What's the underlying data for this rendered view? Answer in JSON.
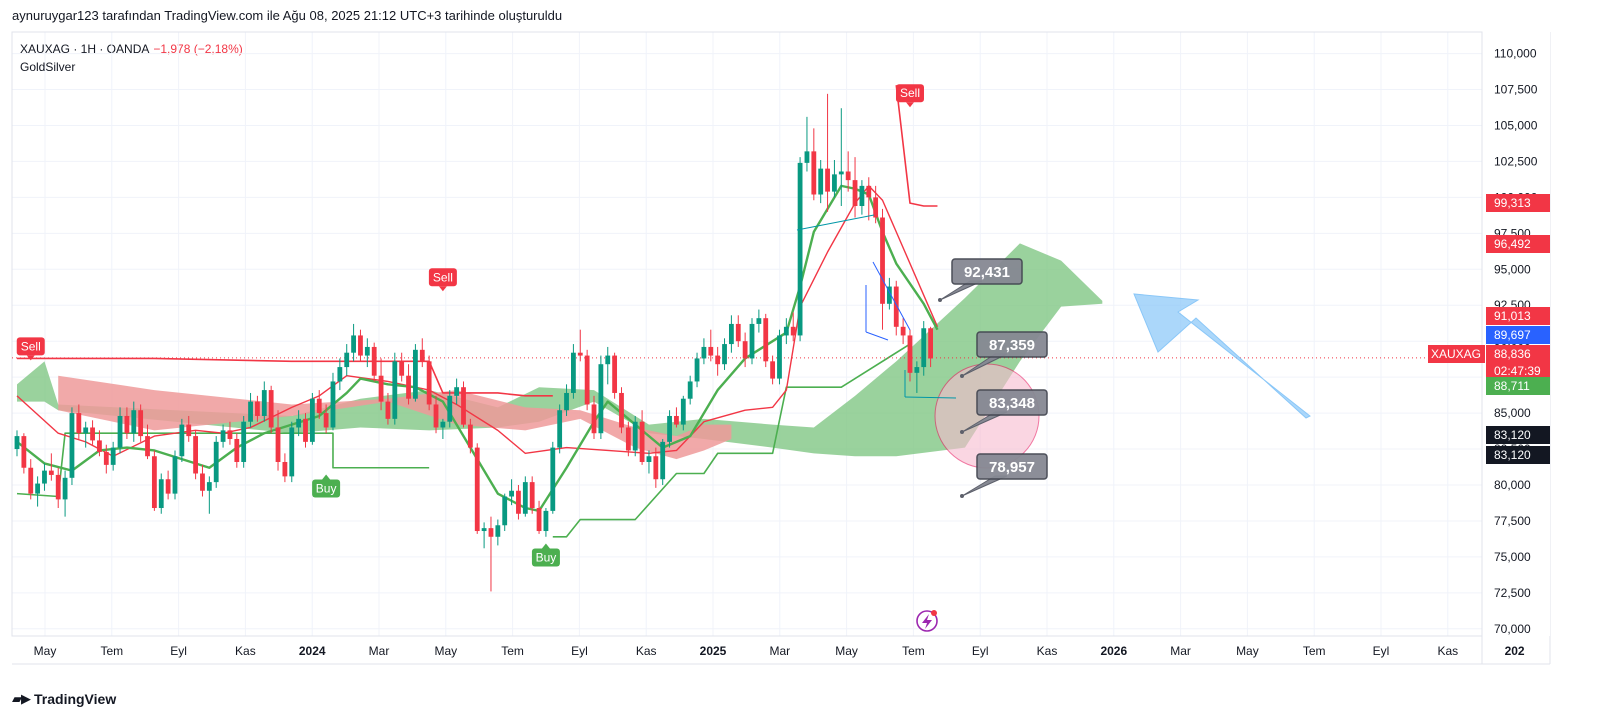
{
  "header": {
    "attribution": "aynuruygar123 tarafından TradingView.com ile Ağu 08, 2025 21:12 UTC+3 tarihinde oluşturuldu",
    "symbol_line": "XAUXAG · 1H · OANDA",
    "change": "−1,978 (−2,18%)",
    "indicator": "GoldSilver"
  },
  "footer": {
    "brand": "TradingView",
    "logo_icon": "tradingview-logo-icon"
  },
  "colors": {
    "up": "#089981",
    "down": "#f23645",
    "buy": "#4caf50",
    "sell": "#f23645",
    "cloud_green": "#81c784",
    "cloud_red": "#ef9a9a",
    "annotation": "#868993",
    "arrow": "#90caf9",
    "circle": "#f8bbd0"
  },
  "chart_data": {
    "type": "candlestick",
    "symbol": "XAUXAG",
    "interval": "1H",
    "source": "OANDA",
    "ylim": [
      69500,
      111500
    ],
    "y_ticks": [
      "110,000",
      "107,500",
      "105,000",
      "102,500",
      "100,000",
      "97,500",
      "95,000",
      "92,500",
      "90,000",
      "87,500",
      "85,000",
      "82,500",
      "80,000",
      "77,500",
      "75,000",
      "72,500",
      "70,000"
    ],
    "x_ticks": [
      "May",
      "Tem",
      "Eyl",
      "Kas",
      "2024",
      "Mar",
      "May",
      "Tem",
      "Eyl",
      "Kas",
      "2025",
      "Mar",
      "May",
      "Tem",
      "Eyl",
      "Kas",
      "2026",
      "Mar",
      "May",
      "Tem",
      "Eyl",
      "Kas",
      "202"
    ],
    "x_tick_bold": [
      "2024",
      "2025",
      "2026",
      "202"
    ],
    "candles": [
      [
        82.5,
        83.8,
        82.0,
        83.4
      ],
      [
        83.4,
        83.6,
        80.8,
        81.2
      ],
      [
        81.2,
        81.8,
        79.0,
        79.4
      ],
      [
        79.4,
        80.6,
        78.5,
        80.1
      ],
      [
        80.1,
        81.5,
        79.6,
        81.0
      ],
      [
        81.0,
        82.2,
        80.3,
        80.7
      ],
      [
        80.7,
        81.2,
        78.4,
        79.0
      ],
      [
        79.0,
        81.0,
        77.8,
        80.5
      ],
      [
        80.5,
        85.4,
        80.0,
        85.0
      ],
      [
        85.0,
        85.6,
        83.2,
        83.6
      ],
      [
        83.6,
        84.4,
        82.6,
        84.0
      ],
      [
        84.0,
        84.5,
        82.8,
        83.1
      ],
      [
        83.1,
        83.8,
        82.0,
        82.3
      ],
      [
        82.3,
        82.8,
        80.8,
        81.4
      ],
      [
        81.4,
        83.0,
        81.0,
        82.6
      ],
      [
        82.6,
        85.4,
        82.2,
        84.8
      ],
      [
        84.8,
        85.4,
        83.2,
        83.6
      ],
      [
        83.6,
        85.8,
        83.0,
        85.2
      ],
      [
        85.2,
        85.6,
        83.0,
        83.4
      ],
      [
        83.4,
        84.2,
        81.8,
        82.0
      ],
      [
        82.0,
        82.4,
        78.2,
        78.4
      ],
      [
        78.4,
        80.8,
        78.0,
        80.4
      ],
      [
        80.4,
        81.0,
        79.0,
        79.4
      ],
      [
        79.4,
        82.4,
        79.0,
        82.0
      ],
      [
        82.0,
        84.6,
        81.6,
        84.2
      ],
      [
        84.2,
        84.8,
        83.0,
        83.4
      ],
      [
        83.4,
        83.8,
        80.4,
        80.8
      ],
      [
        80.8,
        81.4,
        79.2,
        79.6
      ],
      [
        79.6,
        80.6,
        78.0,
        80.2
      ],
      [
        80.2,
        83.4,
        79.8,
        83.0
      ],
      [
        83.0,
        84.2,
        82.6,
        83.8
      ],
      [
        83.8,
        84.4,
        82.8,
        83.2
      ],
      [
        83.2,
        83.6,
        81.2,
        81.6
      ],
      [
        81.6,
        84.8,
        81.2,
        84.4
      ],
      [
        84.4,
        86.4,
        84.0,
        85.8
      ],
      [
        85.8,
        86.2,
        84.4,
        84.8
      ],
      [
        84.8,
        87.2,
        84.4,
        86.6
      ],
      [
        86.6,
        86.9,
        83.6,
        84.0
      ],
      [
        84.0,
        85.2,
        81.0,
        81.6
      ],
      [
        81.6,
        82.2,
        80.2,
        80.6
      ],
      [
        80.6,
        84.4,
        80.2,
        84.0
      ],
      [
        84.0,
        85.2,
        83.4,
        84.6
      ],
      [
        84.6,
        85.0,
        82.6,
        83.0
      ],
      [
        83.0,
        86.4,
        82.8,
        86.0
      ],
      [
        86.0,
        86.6,
        84.6,
        85.0
      ],
      [
        85.0,
        85.6,
        83.6,
        84.0
      ],
      [
        84.0,
        87.8,
        83.8,
        87.2
      ],
      [
        87.2,
        88.8,
        86.6,
        88.2
      ],
      [
        88.2,
        89.8,
        87.6,
        89.2
      ],
      [
        89.2,
        91.2,
        88.6,
        90.4
      ],
      [
        90.4,
        90.8,
        88.6,
        89.0
      ],
      [
        89.0,
        90.2,
        88.2,
        89.6
      ],
      [
        89.6,
        89.9,
        87.2,
        87.6
      ],
      [
        87.6,
        88.8,
        85.2,
        85.8
      ],
      [
        85.8,
        86.4,
        84.2,
        84.6
      ],
      [
        84.6,
        89.2,
        84.2,
        88.6
      ],
      [
        88.6,
        89.2,
        87.2,
        87.6
      ],
      [
        87.6,
        88.4,
        85.6,
        86.0
      ],
      [
        86.0,
        89.8,
        85.8,
        89.4
      ],
      [
        89.4,
        90.2,
        88.2,
        88.6
      ],
      [
        88.6,
        89.0,
        85.2,
        85.6
      ],
      [
        85.6,
        86.2,
        83.6,
        84.0
      ],
      [
        84.0,
        84.6,
        83.2,
        84.4
      ],
      [
        84.4,
        86.6,
        84.0,
        86.2
      ],
      [
        86.2,
        87.4,
        85.6,
        86.8
      ],
      [
        86.8,
        87.2,
        84.0,
        84.2
      ],
      [
        84.2,
        84.6,
        82.2,
        82.6
      ],
      [
        82.6,
        82.9,
        76.6,
        76.8
      ],
      [
        76.8,
        77.4,
        75.6,
        77.0
      ],
      [
        77.0,
        77.8,
        72.6,
        76.4
      ],
      [
        76.4,
        77.6,
        75.8,
        77.2
      ],
      [
        77.2,
        79.4,
        76.8,
        79.2
      ],
      [
        79.2,
        80.4,
        78.6,
        79.6
      ],
      [
        79.6,
        80.0,
        77.6,
        78.0
      ],
      [
        78.0,
        80.6,
        77.8,
        80.2
      ],
      [
        80.2,
        80.6,
        78.0,
        78.4
      ],
      [
        78.4,
        78.9,
        76.6,
        76.8
      ],
      [
        76.8,
        78.4,
        76.4,
        78.2
      ],
      [
        78.2,
        83.0,
        78.0,
        82.6
      ],
      [
        82.6,
        85.6,
        82.2,
        85.2
      ],
      [
        85.2,
        87.0,
        84.8,
        86.4
      ],
      [
        86.4,
        89.8,
        86.0,
        89.2
      ],
      [
        89.2,
        90.8,
        88.6,
        89.0
      ],
      [
        89.0,
        89.4,
        85.2,
        85.6
      ],
      [
        85.6,
        86.2,
        83.2,
        83.6
      ],
      [
        83.6,
        89.0,
        83.2,
        88.4
      ],
      [
        88.4,
        89.6,
        87.0,
        89.0
      ],
      [
        89.0,
        89.2,
        86.0,
        86.4
      ],
      [
        86.4,
        86.8,
        83.6,
        84.0
      ],
      [
        84.0,
        84.4,
        82.0,
        82.4
      ],
      [
        82.4,
        84.8,
        82.0,
        84.4
      ],
      [
        84.4,
        85.2,
        81.4,
        81.6
      ],
      [
        81.6,
        82.4,
        80.8,
        82.0
      ],
      [
        82.0,
        82.6,
        79.8,
        80.4
      ],
      [
        80.4,
        83.2,
        80.0,
        83.0
      ],
      [
        83.0,
        85.2,
        82.6,
        84.8
      ],
      [
        84.8,
        85.4,
        84.0,
        84.2
      ],
      [
        84.2,
        86.2,
        83.8,
        86.0
      ],
      [
        86.0,
        87.6,
        85.6,
        87.2
      ],
      [
        87.2,
        89.2,
        86.8,
        88.8
      ],
      [
        88.8,
        90.2,
        88.4,
        89.6
      ],
      [
        89.6,
        90.8,
        88.6,
        89.0
      ],
      [
        89.0,
        89.6,
        87.6,
        88.4
      ],
      [
        88.4,
        90.2,
        88.0,
        89.8
      ],
      [
        89.8,
        91.8,
        89.2,
        91.2
      ],
      [
        91.2,
        91.8,
        89.6,
        90.0
      ],
      [
        90.0,
        90.6,
        88.2,
        88.8
      ],
      [
        88.8,
        91.6,
        88.4,
        91.2
      ],
      [
        91.2,
        92.2,
        90.6,
        91.6
      ],
      [
        91.6,
        91.9,
        88.2,
        88.6
      ],
      [
        88.6,
        89.0,
        87.0,
        87.4
      ],
      [
        87.4,
        90.8,
        87.0,
        90.4
      ],
      [
        90.4,
        91.6,
        89.8,
        91.0
      ],
      [
        91.0,
        92.0,
        90.0,
        90.4
      ],
      [
        90.4,
        102.8,
        90.0,
        102.4
      ],
      [
        102.4,
        105.6,
        101.8,
        103.2
      ],
      [
        103.2,
        104.8,
        99.8,
        100.2
      ],
      [
        100.2,
        102.6,
        99.6,
        102.0
      ],
      [
        102.0,
        107.2,
        99.0,
        100.4
      ],
      [
        100.4,
        102.6,
        100.0,
        101.6
      ],
      [
        101.6,
        106.2,
        99.4,
        101.8
      ],
      [
        101.8,
        103.2,
        100.4,
        101.2
      ],
      [
        101.2,
        102.8,
        98.6,
        99.4
      ],
      [
        99.4,
        101.2,
        98.8,
        100.8
      ],
      [
        100.8,
        101.4,
        98.4,
        100.0
      ],
      [
        100.0,
        100.8,
        98.2,
        98.6
      ],
      [
        98.6,
        99.2,
        90.8,
        92.6
      ],
      [
        92.6,
        94.4,
        92.2,
        93.8
      ],
      [
        93.8,
        94.2,
        90.4,
        91.0
      ],
      [
        91.0,
        91.6,
        89.8,
        90.4
      ],
      [
        90.4,
        90.8,
        87.2,
        87.8
      ],
      [
        87.8,
        88.6,
        86.4,
        88.2
      ],
      [
        88.2,
        91.4,
        87.6,
        90.9
      ],
      [
        90.9,
        91.0,
        88.2,
        88.8
      ]
    ],
    "tenkan_sen": [
      [
        0,
        83.0
      ],
      [
        4,
        81.5
      ],
      [
        8,
        81.0
      ],
      [
        12,
        82.4
      ],
      [
        16,
        82.6
      ],
      [
        20,
        82.4
      ],
      [
        24,
        81.8
      ],
      [
        28,
        81.2
      ],
      [
        32,
        82.6
      ],
      [
        36,
        83.6
      ],
      [
        40,
        84.2
      ],
      [
        44,
        84.8
      ],
      [
        48,
        86.4
      ],
      [
        50,
        87.4
      ],
      [
        54,
        87.0
      ],
      [
        58,
        86.8
      ],
      [
        62,
        85.8
      ],
      [
        66,
        82.6
      ],
      [
        70,
        79.4
      ],
      [
        74,
        78.4
      ],
      [
        76,
        78.2
      ],
      [
        80,
        81.2
      ],
      [
        84,
        84.4
      ],
      [
        86,
        85.8
      ],
      [
        90,
        84.2
      ],
      [
        94,
        82.6
      ],
      [
        98,
        83.4
      ],
      [
        102,
        86.6
      ],
      [
        106,
        88.8
      ],
      [
        110,
        90.0
      ],
      [
        112,
        90.6
      ],
      [
        114,
        93.8
      ],
      [
        116,
        97.6
      ],
      [
        118,
        99.2
      ],
      [
        120,
        100.8
      ],
      [
        122,
        100.6
      ],
      [
        124,
        100.2
      ],
      [
        126,
        97.6
      ],
      [
        128,
        95.4
      ],
      [
        132,
        92.6
      ],
      [
        134,
        90.8
      ]
    ],
    "kijun_sen": [
      [
        0,
        86.2
      ],
      [
        6,
        83.6
      ],
      [
        10,
        83.0
      ],
      [
        14,
        82.0
      ],
      [
        20,
        83.4
      ],
      [
        26,
        83.8
      ],
      [
        30,
        83.6
      ],
      [
        34,
        84.0
      ],
      [
        40,
        85.4
      ],
      [
        44,
        86.2
      ],
      [
        48,
        87.6
      ],
      [
        54,
        87.2
      ],
      [
        60,
        86.6
      ],
      [
        64,
        85.6
      ],
      [
        68,
        84.4
      ],
      [
        70,
        83.8
      ],
      [
        74,
        82.2
      ],
      [
        80,
        82.6
      ],
      [
        86,
        82.4
      ],
      [
        92,
        82.2
      ],
      [
        96,
        82.4
      ],
      [
        100,
        84.4
      ],
      [
        106,
        85.2
      ],
      [
        110,
        85.4
      ],
      [
        112,
        86.6
      ],
      [
        114,
        92.4
      ],
      [
        118,
        96.2
      ],
      [
        122,
        99.6
      ],
      [
        124,
        100.8
      ],
      [
        126,
        99.8
      ],
      [
        128,
        97.6
      ],
      [
        132,
        93.2
      ],
      [
        134,
        91.0
      ]
    ],
    "supertrend_up": [
      [
        0,
        79.4
      ],
      [
        6,
        79.2
      ],
      [
        7,
        83.6
      ],
      [
        13,
        83.6
      ],
      [
        20,
        83.6
      ],
      [
        42,
        83.6
      ],
      [
        46,
        83.6
      ],
      [
        46,
        81.2
      ],
      [
        60,
        81.2
      ]
    ],
    "supertrend_up_2": [
      [
        78,
        76.4
      ],
      [
        80,
        76.4
      ],
      [
        82,
        77.6
      ],
      [
        90,
        77.6
      ],
      [
        96,
        80.8
      ],
      [
        100,
        80.8
      ],
      [
        102,
        82.2
      ],
      [
        110,
        82.2
      ],
      [
        112,
        86.8
      ],
      [
        120,
        86.8
      ],
      [
        130,
        89.8
      ]
    ],
    "supertrend_down": [
      [
        0,
        88.8
      ],
      [
        20,
        88.8
      ],
      [
        40,
        88.6
      ],
      [
        60,
        88.6
      ],
      [
        62,
        86.4
      ],
      [
        70,
        86.4
      ],
      [
        74,
        86.2
      ],
      [
        78,
        86.2
      ]
    ],
    "supertrend_down_2": [
      [
        128,
        107.8
      ],
      [
        130,
        99.6
      ],
      [
        132,
        99.4
      ],
      [
        134,
        99.4
      ]
    ],
    "cloud_green": [
      [
        0,
        85.8,
        87.0
      ],
      [
        4,
        88.6,
        85.8
      ],
      [
        6,
        85.6,
        85.2
      ],
      [
        40,
        83.6,
        84.8
      ],
      [
        50,
        84.0,
        86.0
      ],
      [
        60,
        83.8,
        86.6
      ],
      [
        70,
        84.0,
        85.4
      ],
      [
        76,
        84.4,
        86.8
      ],
      [
        84,
        85.8,
        86.6
      ],
      [
        92,
        83.6,
        84.2
      ],
      [
        100,
        83.2,
        84.6
      ],
      [
        110,
        82.6,
        84.2
      ],
      [
        116,
        82.2,
        84.0
      ],
      [
        122,
        82.0,
        86.2
      ],
      [
        128,
        82.0,
        88.6
      ],
      [
        138,
        82.6,
        93.0
      ],
      [
        146,
        88.6,
        96.8
      ],
      [
        152,
        92.4,
        95.6
      ],
      [
        158,
        92.6,
        92.8
      ]
    ],
    "cloud_red": [
      [
        6,
        85.2,
        87.6
      ],
      [
        20,
        83.8,
        86.6
      ],
      [
        40,
        84.8,
        85.6
      ],
      [
        54,
        85.8,
        86.0
      ],
      [
        64,
        84.2,
        86.6
      ],
      [
        74,
        83.8,
        85.4
      ],
      [
        82,
        84.6,
        85.2
      ],
      [
        90,
        82.6,
        84.0
      ],
      [
        96,
        81.8,
        83.4
      ],
      [
        100,
        82.4,
        84.2
      ],
      [
        104,
        83.2,
        84.2
      ]
    ],
    "signals": [
      {
        "label": "Sell",
        "type": "sell",
        "index": 2,
        "price": 88.6
      },
      {
        "label": "Sell",
        "type": "sell",
        "index": 62,
        "price": 93.4
      },
      {
        "label": "Buy",
        "type": "buy",
        "index": 45,
        "price": 80.8
      },
      {
        "label": "Buy",
        "type": "buy",
        "index": 77,
        "price": 76.0
      },
      {
        "label": "Sell",
        "type": "sell",
        "index": 130,
        "price": 106.2
      }
    ],
    "annotations": [
      {
        "label": "92,431",
        "price": 92.431
      },
      {
        "label": "87,359",
        "price": 87.359
      },
      {
        "label": "83,348",
        "price": 83.348
      },
      {
        "label": "78,957",
        "price": 78.957
      }
    ],
    "price_labels": [
      {
        "value": "99,313",
        "color": "#f23645",
        "text_color": "#ffffff"
      },
      {
        "value": "96,492",
        "color": "#f23645",
        "text_color": "#ffffff"
      },
      {
        "value": "91,013",
        "color": "#f23645",
        "text_color": "#ffffff"
      },
      {
        "value": "89,697",
        "color": "#2962ff",
        "text_color": "#ffffff"
      },
      {
        "value": "88,836",
        "sub": "02:47:39",
        "color": "#f23645",
        "text_color": "#ffffff",
        "tag": "XAUXAG"
      },
      {
        "value": "88,711",
        "color": "#4caf50",
        "text_color": "#ffffff"
      },
      {
        "value": "83,120",
        "color": "#131722",
        "text_color": "#ffffff"
      },
      {
        "value": "83,120",
        "color": "#131722",
        "text_color": "#ffffff"
      }
    ],
    "current_price": 88.836,
    "grid": true
  }
}
